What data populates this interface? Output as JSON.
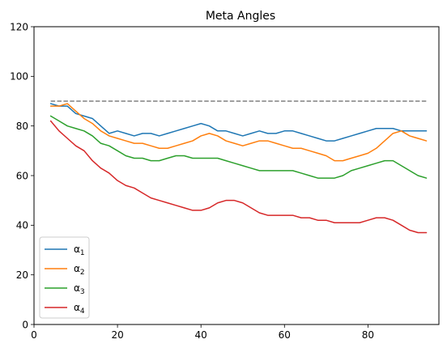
{
  "chart_data": {
    "type": "line",
    "title": "Meta Angles",
    "xlabel": "",
    "ylabel": "",
    "xlim": [
      0,
      97
    ],
    "ylim": [
      0,
      120
    ],
    "x_ticks": [
      0,
      20,
      40,
      60,
      80
    ],
    "y_ticks": [
      0,
      20,
      40,
      60,
      80,
      100,
      120
    ],
    "grid": false,
    "legend_position": "lower-left",
    "x": [
      4,
      6,
      8,
      10,
      12,
      14,
      16,
      18,
      20,
      22,
      24,
      26,
      28,
      30,
      32,
      34,
      36,
      38,
      40,
      42,
      44,
      46,
      48,
      50,
      52,
      54,
      56,
      58,
      60,
      62,
      64,
      66,
      68,
      70,
      72,
      74,
      76,
      78,
      80,
      82,
      84,
      86,
      88,
      90,
      92,
      94
    ],
    "series": [
      {
        "name": "α1",
        "label_main": "α",
        "label_sub": "1",
        "color": "#1f77b4",
        "style": "solid",
        "values": [
          89,
          88,
          88,
          85,
          84,
          83,
          80,
          77,
          78,
          77,
          76,
          77,
          77,
          76,
          77,
          78,
          79,
          80,
          81,
          80,
          78,
          78,
          77,
          76,
          77,
          78,
          77,
          77,
          78,
          78,
          77,
          76,
          75,
          74,
          74,
          75,
          76,
          77,
          78,
          79,
          79,
          79,
          78,
          78,
          78,
          78
        ]
      },
      {
        "name": "α2",
        "label_main": "α",
        "label_sub": "2",
        "color": "#ff7f0e",
        "style": "solid",
        "values": [
          88,
          88,
          89,
          86,
          83,
          81,
          78,
          76,
          75,
          74,
          73,
          73,
          72,
          71,
          71,
          72,
          73,
          74,
          76,
          77,
          76,
          74,
          73,
          72,
          73,
          74,
          74,
          73,
          72,
          71,
          71,
          70,
          69,
          68,
          66,
          66,
          67,
          68,
          69,
          71,
          74,
          77,
          78,
          76,
          75,
          74
        ]
      },
      {
        "name": "α3",
        "label_main": "α",
        "label_sub": "3",
        "color": "#2ca02c",
        "style": "solid",
        "values": [
          84,
          82,
          80,
          79,
          78,
          76,
          73,
          72,
          70,
          68,
          67,
          67,
          66,
          66,
          67,
          68,
          68,
          67,
          67,
          67,
          67,
          66,
          65,
          64,
          63,
          62,
          62,
          62,
          62,
          62,
          61,
          60,
          59,
          59,
          59,
          60,
          62,
          63,
          64,
          65,
          66,
          66,
          64,
          62,
          60,
          59
        ]
      },
      {
        "name": "α4",
        "label_main": "α",
        "label_sub": "4",
        "color": "#d62728",
        "style": "solid",
        "values": [
          82,
          78,
          75,
          72,
          70,
          66,
          63,
          61,
          58,
          56,
          55,
          53,
          51,
          50,
          49,
          48,
          47,
          46,
          46,
          47,
          49,
          50,
          50,
          49,
          47,
          45,
          44,
          44,
          44,
          44,
          43,
          43,
          42,
          42,
          41,
          41,
          41,
          41,
          42,
          43,
          43,
          42,
          40,
          38,
          37,
          37
        ]
      },
      {
        "name": "",
        "color": "#808080",
        "style": "dashed",
        "values": [
          90,
          90,
          90,
          90,
          90,
          90,
          90,
          90,
          90,
          90,
          90,
          90,
          90,
          90,
          90,
          90,
          90,
          90,
          90,
          90,
          90,
          90,
          90,
          90,
          90,
          90,
          90,
          90,
          90,
          90,
          90,
          90,
          90,
          90,
          90,
          90,
          90,
          90,
          90,
          90,
          90,
          90,
          90,
          90,
          90,
          90
        ]
      }
    ]
  }
}
